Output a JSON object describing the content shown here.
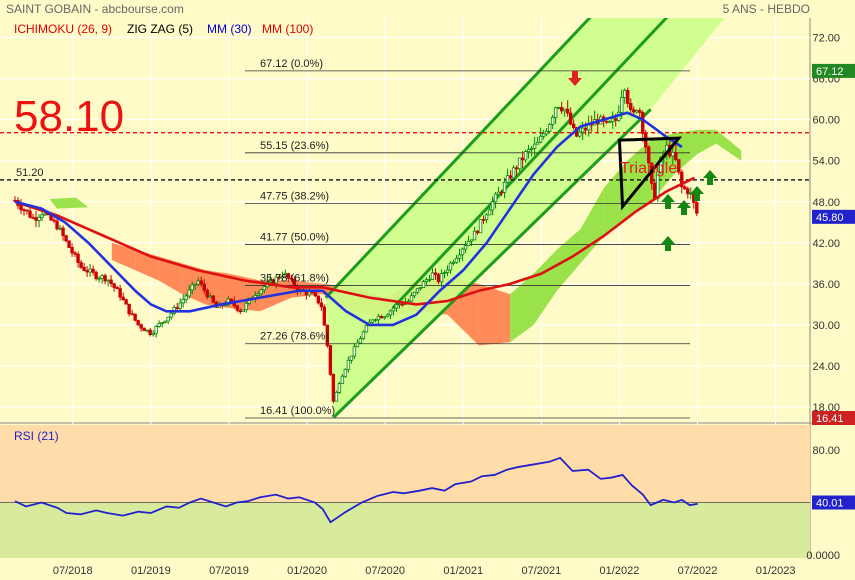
{
  "header": {
    "title": "SAINT GOBAIN - abcbourse.com",
    "period": "5 ANS - HEBDO",
    "indicators": [
      {
        "label": "ICHIMOKU (26, 9)",
        "color": "#e00000"
      },
      {
        "label": "ZIG ZAG (5)",
        "color": "#000000"
      },
      {
        "label": "MM (30)",
        "color": "#0000dd"
      },
      {
        "label": "MM (100)",
        "color": "#e00000"
      }
    ]
  },
  "colors": {
    "background": "#fffbc8",
    "grid": "#ffffff",
    "candle_up": "#008800",
    "candle_down": "#cc0000",
    "ma30": "#2233dd",
    "ma100": "#dd1111",
    "cloud_bull": "#88dd33",
    "cloud_bear": "#ff7744",
    "channel": "#1d9d1d",
    "channel_fill": "#ccff88",
    "rsi_line": "#2222cc",
    "rsi_upper": "#ffdca8",
    "rsi_lower": "#d8eb9c",
    "annotation_red": "#dd2222",
    "annotation_green": "#118811"
  },
  "chart_data": [
    {
      "type": "candlestick",
      "yaxis": {
        "ticks": [
          18.0,
          24.0,
          30.0,
          36.0,
          42.0,
          48.0,
          54.0,
          60.0,
          66.0,
          72.0
        ],
        "range": [
          16.4,
          73.5
        ]
      },
      "xaxis": {
        "ticks": [
          "07/2018",
          "01/2019",
          "07/2019",
          "01/2020",
          "07/2020",
          "01/2021",
          "07/2021",
          "01/2022",
          "07/2022",
          "01/2023"
        ],
        "range": [
          2018.13,
          2023.06
        ]
      },
      "price_labels": [
        {
          "value": 67.12,
          "text": "67.12",
          "color": "#228822"
        },
        {
          "value": 45.8,
          "text": "45.80",
          "color": "#2222cc"
        },
        {
          "value": 16.41,
          "text": "16.41",
          "color": "#cc2222"
        }
      ],
      "big_label": {
        "text": "58.10",
        "value": 58.1
      },
      "level_51": {
        "text": "51.20",
        "value": 51.2
      },
      "fibonacci": [
        {
          "value": 67.12,
          "text": "67.12  (0.0%)"
        },
        {
          "value": 55.15,
          "text": "55.15  (23.6%)"
        },
        {
          "value": 47.75,
          "text": "47.75  (38.2%)"
        },
        {
          "value": 41.77,
          "text": "41.77  (50.0%)"
        },
        {
          "value": 35.78,
          "text": "35.78  (61.8%)"
        },
        {
          "value": 27.26,
          "text": "27.26  (78.6%)"
        },
        {
          "value": 16.41,
          "text": "16.41  (100.0%)"
        }
      ],
      "pattern_label": "Triangle",
      "price_path": [
        [
          2018.13,
          48.2
        ],
        [
          2018.25,
          45.5
        ],
        [
          2018.3,
          46.5
        ],
        [
          2018.4,
          44.5
        ],
        [
          2018.46,
          42.0
        ],
        [
          2018.55,
          38.5
        ],
        [
          2018.65,
          37.2
        ],
        [
          2018.72,
          36.8
        ],
        [
          2018.8,
          34.5
        ],
        [
          2018.86,
          32.0
        ],
        [
          2018.92,
          30.0
        ],
        [
          2019.0,
          28.8
        ],
        [
          2019.05,
          30.0
        ],
        [
          2019.12,
          31.5
        ],
        [
          2019.18,
          33.0
        ],
        [
          2019.25,
          35.0
        ],
        [
          2019.3,
          36.5
        ],
        [
          2019.36,
          34.5
        ],
        [
          2019.42,
          32.5
        ],
        [
          2019.5,
          33.5
        ],
        [
          2019.58,
          32.0
        ],
        [
          2019.66,
          34.5
        ],
        [
          2019.75,
          36.0
        ],
        [
          2019.85,
          37.5
        ],
        [
          2019.95,
          35.0
        ],
        [
          2020.03,
          34.5
        ],
        [
          2020.09,
          33.0
        ],
        [
          2020.13,
          27.0
        ],
        [
          2020.17,
          18.5
        ],
        [
          2020.21,
          22.0
        ],
        [
          2020.28,
          25.5
        ],
        [
          2020.35,
          28.5
        ],
        [
          2020.42,
          31.0
        ],
        [
          2020.5,
          31.5
        ],
        [
          2020.58,
          33.0
        ],
        [
          2020.65,
          33.5
        ],
        [
          2020.72,
          35.5
        ],
        [
          2020.8,
          37.5
        ],
        [
          2020.84,
          36.5
        ],
        [
          2020.92,
          39.0
        ],
        [
          2021.0,
          41.5
        ],
        [
          2021.08,
          43.5
        ],
        [
          2021.16,
          47.0
        ],
        [
          2021.25,
          50.0
        ],
        [
          2021.32,
          52.5
        ],
        [
          2021.4,
          55.0
        ],
        [
          2021.48,
          56.5
        ],
        [
          2021.55,
          59.5
        ],
        [
          2021.6,
          62.5
        ],
        [
          2021.65,
          61.5
        ],
        [
          2021.72,
          57.5
        ],
        [
          2021.8,
          59.0
        ],
        [
          2021.86,
          60.0
        ],
        [
          2021.92,
          59.0
        ],
        [
          2021.98,
          60.0
        ],
        [
          2022.03,
          65.5
        ],
        [
          2022.08,
          60.0
        ],
        [
          2022.12,
          62.5
        ],
        [
          2022.17,
          56.0
        ],
        [
          2022.22,
          48.0
        ],
        [
          2022.25,
          53.0
        ],
        [
          2022.3,
          56.0
        ],
        [
          2022.36,
          54.0
        ],
        [
          2022.4,
          50.0
        ],
        [
          2022.45,
          49.5
        ],
        [
          2022.5,
          46.0
        ]
      ],
      "ma30": [
        [
          2018.13,
          48.0
        ],
        [
          2018.3,
          47.0
        ],
        [
          2018.45,
          45.0
        ],
        [
          2018.6,
          42.0
        ],
        [
          2018.75,
          38.5
        ],
        [
          2018.9,
          35.0
        ],
        [
          2019.0,
          33.0
        ],
        [
          2019.1,
          32.0
        ],
        [
          2019.25,
          32.0
        ],
        [
          2019.45,
          33.0
        ],
        [
          2019.7,
          34.0
        ],
        [
          2019.95,
          35.0
        ],
        [
          2020.1,
          35.0
        ],
        [
          2020.25,
          32.0
        ],
        [
          2020.4,
          30.0
        ],
        [
          2020.55,
          30.0
        ],
        [
          2020.7,
          31.5
        ],
        [
          2020.85,
          35.0
        ],
        [
          2021.0,
          38.0
        ],
        [
          2021.15,
          42.0
        ],
        [
          2021.3,
          47.0
        ],
        [
          2021.45,
          52.0
        ],
        [
          2021.6,
          56.0
        ],
        [
          2021.75,
          59.0
        ],
        [
          2021.9,
          60.0
        ],
        [
          2022.05,
          61.0
        ],
        [
          2022.15,
          60.0
        ],
        [
          2022.3,
          57.5
        ],
        [
          2022.4,
          56.0
        ]
      ],
      "ma100": [
        [
          2018.13,
          48.0
        ],
        [
          2018.4,
          46.0
        ],
        [
          2018.7,
          43.0
        ],
        [
          2019.0,
          40.0
        ],
        [
          2019.3,
          38.0
        ],
        [
          2019.6,
          36.5
        ],
        [
          2019.9,
          35.5
        ],
        [
          2020.1,
          35.5
        ],
        [
          2020.4,
          34.0
        ],
        [
          2020.7,
          33.0
        ],
        [
          2020.9,
          33.5
        ],
        [
          2021.1,
          35.0
        ],
        [
          2021.3,
          36.0
        ],
        [
          2021.5,
          37.5
        ],
        [
          2021.7,
          40.0
        ],
        [
          2021.9,
          43.0
        ],
        [
          2022.1,
          46.5
        ],
        [
          2022.3,
          49.5
        ],
        [
          2022.48,
          51.5
        ]
      ],
      "cloud": [
        [
          2018.75,
          42.0,
          39.5
        ],
        [
          2018.9,
          41.0,
          38.0
        ],
        [
          2019.05,
          40.0,
          36.5
        ],
        [
          2019.2,
          39.0,
          34.5
        ],
        [
          2019.35,
          38.0,
          33.0
        ],
        [
          2019.5,
          37.5,
          32.5
        ],
        [
          2019.7,
          36.5,
          32.0
        ],
        [
          2019.9,
          36.5,
          34.0
        ],
        [
          2020.1,
          36.0,
          34.5
        ],
        [
          2020.3,
          35.5,
          32.0
        ],
        [
          2020.5,
          34.0,
          31.0
        ],
        [
          2020.7,
          36.5,
          32.0
        ],
        [
          2020.9,
          37.0,
          31.5
        ],
        [
          2021.1,
          36.0,
          27.0
        ],
        [
          2021.3,
          34.5,
          27.5
        ],
        [
          2021.45,
          37.5,
          30.0
        ],
        [
          2021.6,
          41.0,
          35.0
        ],
        [
          2021.75,
          44.0,
          39.0
        ],
        [
          2021.9,
          50.0,
          43.0
        ],
        [
          2022.05,
          54.0,
          45.5
        ],
        [
          2022.2,
          57.0,
          48.0
        ],
        [
          2022.35,
          58.0,
          52.0
        ],
        [
          2022.5,
          58.5,
          55.0
        ],
        [
          2022.62,
          58.5,
          56.5
        ],
        [
          2022.78,
          55.5,
          54.0
        ]
      ]
    },
    {
      "type": "line",
      "title": "RSI (21)",
      "yaxis": {
        "ticks": [
          0,
          40,
          80
        ],
        "tick_labels": [
          "0.0000",
          "40.01",
          "80.00"
        ],
        "range": [
          0,
          100
        ]
      },
      "last_label": {
        "value": 40.01,
        "text": "40.01"
      },
      "values": [
        [
          2018.13,
          41
        ],
        [
          2018.2,
          37
        ],
        [
          2018.3,
          40
        ],
        [
          2018.4,
          36
        ],
        [
          2018.46,
          32
        ],
        [
          2018.55,
          31
        ],
        [
          2018.65,
          34
        ],
        [
          2018.72,
          32
        ],
        [
          2018.82,
          30
        ],
        [
          2018.92,
          33
        ],
        [
          2019.0,
          32
        ],
        [
          2019.1,
          37
        ],
        [
          2019.18,
          36
        ],
        [
          2019.25,
          40
        ],
        [
          2019.32,
          43
        ],
        [
          2019.4,
          40
        ],
        [
          2019.48,
          37
        ],
        [
          2019.55,
          40
        ],
        [
          2019.62,
          41
        ],
        [
          2019.7,
          44
        ],
        [
          2019.8,
          46
        ],
        [
          2019.88,
          43
        ],
        [
          2019.95,
          44
        ],
        [
          2020.05,
          40
        ],
        [
          2020.1,
          35
        ],
        [
          2020.15,
          25
        ],
        [
          2020.2,
          29
        ],
        [
          2020.25,
          33
        ],
        [
          2020.35,
          40
        ],
        [
          2020.45,
          45
        ],
        [
          2020.55,
          48
        ],
        [
          2020.62,
          47
        ],
        [
          2020.72,
          49
        ],
        [
          2020.8,
          51
        ],
        [
          2020.88,
          49
        ],
        [
          2020.95,
          54
        ],
        [
          2021.05,
          56
        ],
        [
          2021.12,
          60
        ],
        [
          2021.2,
          61
        ],
        [
          2021.28,
          65
        ],
        [
          2021.35,
          67
        ],
        [
          2021.45,
          69
        ],
        [
          2021.55,
          71
        ],
        [
          2021.62,
          74
        ],
        [
          2021.7,
          64
        ],
        [
          2021.8,
          65
        ],
        [
          2021.88,
          58
        ],
        [
          2021.95,
          59
        ],
        [
          2022.02,
          61
        ],
        [
          2022.08,
          53
        ],
        [
          2022.15,
          46
        ],
        [
          2022.2,
          38
        ],
        [
          2022.28,
          42
        ],
        [
          2022.35,
          40
        ],
        [
          2022.4,
          42
        ],
        [
          2022.45,
          38
        ],
        [
          2022.5,
          39
        ]
      ]
    }
  ]
}
